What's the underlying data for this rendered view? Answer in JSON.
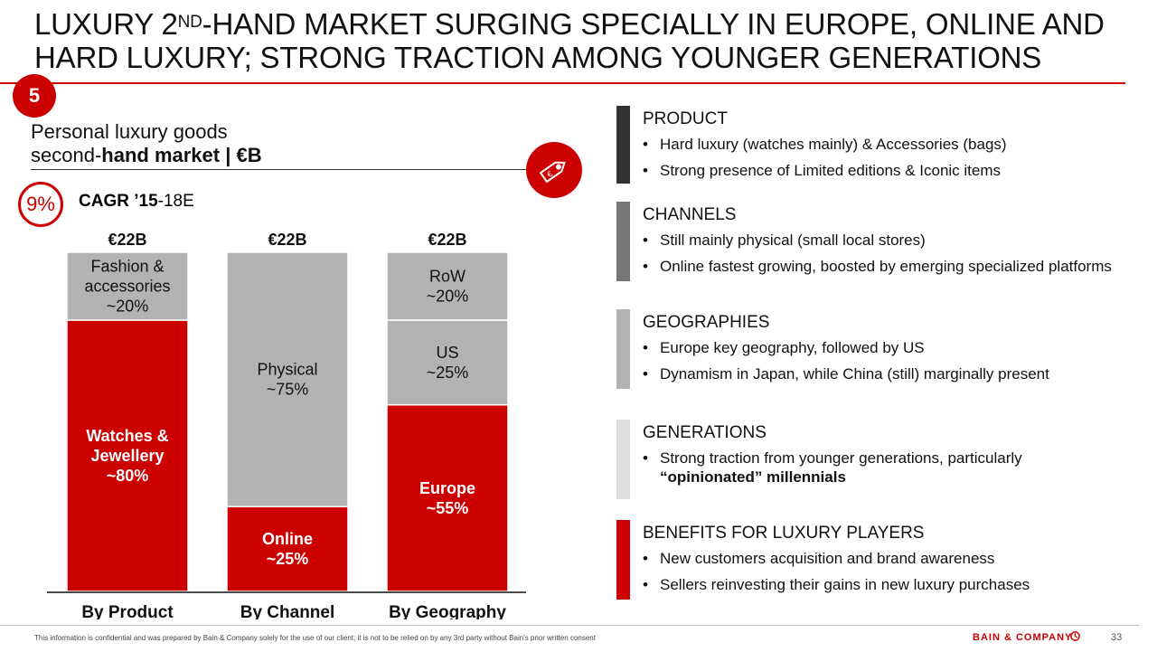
{
  "title": {
    "part1": "LUXURY 2",
    "sup": "ND",
    "part2": "-HAND MARKET SURGING SPECIALLY IN EUROPE, ONLINE AND HARD LUXURY; STRONG TRACTION AMONG YOUNGER GENERATIONS"
  },
  "slide_badge": "5",
  "subtitle": {
    "line1": "Personal luxury goods",
    "line2_prefix": "second-",
    "line2_bold": "hand market | €B"
  },
  "tag_icon": "price-tag-icon",
  "cagr": {
    "value": "9%",
    "label_bold": "CAGR ’15",
    "label_rest": "-18E"
  },
  "colors": {
    "red": "#cc0000",
    "grey": "#b3b3b3",
    "dark": "#333333",
    "mid": "#777777",
    "light": "#b3b3b3",
    "lighter": "#dddddd"
  },
  "chart_data": {
    "type": "bar",
    "stacked": true,
    "unit": "%",
    "ylim": [
      0,
      100
    ],
    "bars": [
      {
        "category": "By Product",
        "total": "€22B",
        "segments": [
          {
            "name": "Watches & Jewellery",
            "label": "Watches &\nJewellery\n~80%",
            "value": 80,
            "color": "#cc0000"
          },
          {
            "name": "Fashion & accessories",
            "label": "Fashion &\naccessories\n~20%",
            "value": 20,
            "color": "#b3b3b3"
          }
        ]
      },
      {
        "category": "By Channel",
        "total": "€22B",
        "segments": [
          {
            "name": "Online",
            "label": "Online\n~25%",
            "value": 25,
            "color": "#cc0000"
          },
          {
            "name": "Physical",
            "label": "Physical\n~75%",
            "value": 75,
            "color": "#b3b3b3"
          }
        ]
      },
      {
        "category": "By Geography",
        "total": "€22B",
        "segments": [
          {
            "name": "Europe",
            "label": "Europe\n~55%",
            "value": 55,
            "color": "#cc0000"
          },
          {
            "name": "US",
            "label": "US\n~25%",
            "value": 25,
            "color": "#b3b3b3"
          },
          {
            "name": "RoW",
            "label": "RoW\n~20%",
            "value": 20,
            "color": "#b3b3b3"
          }
        ]
      }
    ]
  },
  "sections": [
    {
      "title": "PRODUCT",
      "color": "#333333",
      "bullets": [
        "Hard luxury (watches mainly) & Accessories (bags)",
        "Strong presence of Limited editions & Iconic items"
      ]
    },
    {
      "title": "CHANNELS",
      "color": "#777777",
      "bullets": [
        "Still mainly physical (small local stores)",
        "Online fastest growing, boosted by emerging specialized platforms"
      ]
    },
    {
      "title": "GEOGRAPHIES",
      "color": "#b3b3b3",
      "bullets": [
        "Europe key geography, followed by US",
        "Dynamism in Japan, while China (still) marginally present"
      ]
    },
    {
      "title": "GENERATIONS",
      "color": "#dddddd",
      "bullets": [
        "Strong traction from younger generations, particularly"
      ],
      "bullet_continuation_bold": "“opinionated” millennials"
    },
    {
      "title": "BENEFITS FOR LUXURY PLAYERS",
      "color": "#cc0000",
      "bullets": [
        "New customers acquisition and brand awareness",
        "Sellers reinvesting their gains in new luxury purchases"
      ]
    }
  ],
  "footer": {
    "note": "This information is confidential and was prepared by Bain & Company solely for the use of our client; it is not to be relied on by any 3rd party without Bain's prior written consent",
    "brand": "BAIN & COMPANY",
    "page": "33"
  }
}
